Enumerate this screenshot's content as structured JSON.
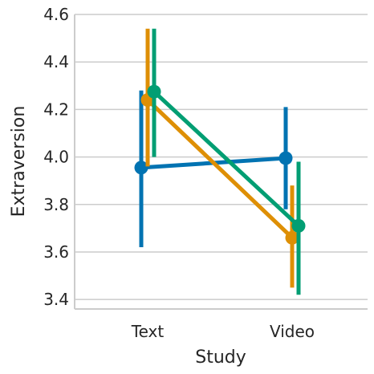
{
  "chart_data": {
    "type": "line",
    "categories": [
      "Text",
      "Video"
    ],
    "xlabel": "Study",
    "ylabel": "Extraversion",
    "ylim": [
      3.36,
      4.6
    ],
    "yticks": [
      "3.4",
      "3.6",
      "3.8",
      "4.0",
      "4.2",
      "4.4",
      "4.6"
    ],
    "grid": true,
    "series": [
      {
        "color": "#0173b2",
        "values": [
          3.955,
          3.995
        ],
        "ci": [
          [
            3.62,
            4.28
          ],
          [
            3.78,
            4.21
          ]
        ]
      },
      {
        "color": "#de8f05",
        "values": [
          4.24,
          3.66
        ],
        "ci": [
          [
            3.96,
            4.54
          ],
          [
            3.45,
            3.88
          ]
        ]
      },
      {
        "color": "#029e73",
        "values": [
          4.275,
          3.71
        ],
        "ci": [
          [
            4.0,
            4.54
          ],
          [
            3.42,
            3.98
          ]
        ]
      }
    ]
  }
}
